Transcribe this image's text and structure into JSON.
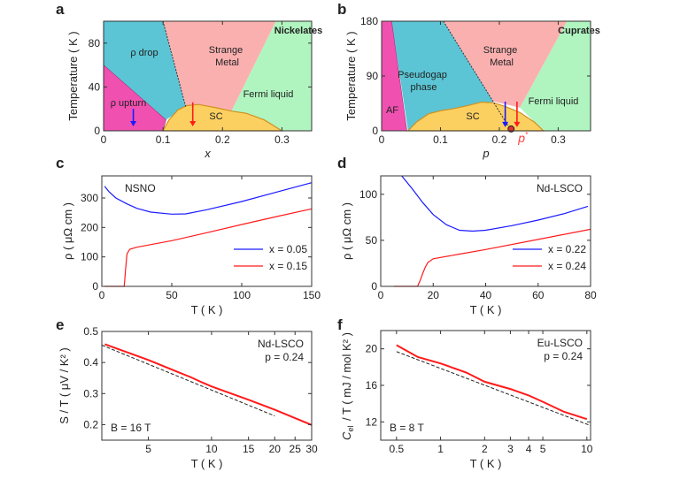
{
  "colors": {
    "pink": "#f050b0",
    "cyan": "#5bc5d5",
    "salmon": "#fbb0b0",
    "green": "#b0f5c0",
    "sc": "#fcd060",
    "sc_edge": "#d09020",
    "blue": "#1a1aff",
    "red": "#ff1a1a"
  },
  "chart_data": [
    {
      "panel": "a",
      "type": "area",
      "xlabel": "x",
      "ylabel": "Temperature ( K )",
      "xlim": [
        0,
        0.35
      ],
      "ylim": [
        0,
        100
      ],
      "xticks": [
        0,
        0.1,
        0.2,
        0.3
      ],
      "yticks": [
        0,
        40,
        80
      ],
      "title": "Nickelates",
      "regions": [
        {
          "label": "ρ drop",
          "color": "cyan",
          "points": [
            [
              0,
              100
            ],
            [
              0.1,
              100
            ],
            [
              0.138,
              22
            ],
            [
              0.105,
              10
            ],
            [
              0,
              60
            ]
          ]
        },
        {
          "label": "Strange Metal",
          "color": "salmon",
          "points": [
            [
              0.1,
              100
            ],
            [
              0.29,
              100
            ],
            [
              0.215,
              18
            ],
            [
              0.138,
              22
            ]
          ]
        },
        {
          "label": "Fermi liquid",
          "color": "green",
          "points": [
            [
              0.29,
              100
            ],
            [
              0.35,
              100
            ],
            [
              0.35,
              0
            ],
            [
              0.3,
              0
            ],
            [
              0.215,
              18
            ]
          ]
        },
        {
          "label": "ρ upturn",
          "color": "pink",
          "points": [
            [
              0,
              60
            ],
            [
              0.105,
              10
            ],
            [
              0.1,
              0
            ],
            [
              0,
              0
            ]
          ]
        },
        {
          "label": "SC",
          "color": "sc",
          "points": [
            [
              0.1,
              0
            ],
            [
              0.11,
              10
            ],
            [
              0.125,
              19
            ],
            [
              0.14,
              23
            ],
            [
              0.16,
              24
            ],
            [
              0.19,
              21
            ],
            [
              0.215,
              18
            ],
            [
              0.24,
              16
            ],
            [
              0.27,
              10
            ],
            [
              0.3,
              0
            ]
          ]
        }
      ],
      "dashed": [
        [
          0.1,
          100
        ],
        [
          0.138,
          22
        ]
      ],
      "arrows": [
        {
          "x": 0.05,
          "from": 20,
          "to": 4,
          "color": "blue"
        },
        {
          "x": 0.15,
          "from": 26,
          "to": 4,
          "color": "red"
        }
      ]
    },
    {
      "panel": "b",
      "type": "area",
      "xlabel": "p",
      "ylabel": "Temperature ( K )",
      "xlim": [
        0,
        0.355
      ],
      "ylim": [
        0,
        180
      ],
      "xticks": [
        0,
        0.1,
        0.2,
        0.3
      ],
      "yticks": [
        0,
        90,
        180
      ],
      "title": "Cuprates",
      "regions": [
        {
          "label": "Pseudogap phase",
          "color": "cyan",
          "points": [
            [
              0.017,
              180
            ],
            [
              0.105,
              180
            ],
            [
              0.19,
              48
            ],
            [
              0.045,
              0
            ]
          ]
        },
        {
          "label": "Strange Metal",
          "color": "salmon",
          "points": [
            [
              0.105,
              180
            ],
            [
              0.315,
              180
            ],
            [
              0.235,
              38
            ],
            [
              0.19,
              48
            ]
          ]
        },
        {
          "label": "Fermi liquid",
          "color": "green",
          "points": [
            [
              0.315,
              180
            ],
            [
              0.355,
              180
            ],
            [
              0.355,
              0
            ],
            [
              0.275,
              0
            ],
            [
              0.235,
              38
            ]
          ]
        },
        {
          "label": "AF",
          "color": "pink",
          "points": [
            [
              0,
              180
            ],
            [
              0.017,
              180
            ],
            [
              0.043,
              0
            ],
            [
              0,
              0
            ]
          ]
        },
        {
          "label": "SC",
          "color": "sc",
          "points": [
            [
              0.045,
              0
            ],
            [
              0.06,
              15
            ],
            [
              0.08,
              28
            ],
            [
              0.1,
              33
            ],
            [
              0.12,
              36
            ],
            [
              0.14,
              40
            ],
            [
              0.17,
              47
            ],
            [
              0.19,
              46
            ],
            [
              0.21,
              40
            ],
            [
              0.235,
              30
            ],
            [
              0.26,
              14
            ],
            [
              0.275,
              0
            ]
          ]
        }
      ],
      "dashed": [
        [
          0.105,
          180
        ],
        [
          0.22,
          0
        ]
      ],
      "point": {
        "x": 0.22,
        "y": 3,
        "label": "p*"
      },
      "arrows": [
        {
          "x": 0.21,
          "from": 48,
          "to": 6,
          "color": "blue"
        },
        {
          "x": 0.23,
          "from": 48,
          "to": 6,
          "color": "red"
        }
      ]
    },
    {
      "panel": "c",
      "type": "line",
      "xlabel": "T ( K )",
      "ylabel": "ρ ( μΩ cm )",
      "xlim": [
        0,
        150
      ],
      "ylim": [
        0,
        375
      ],
      "xticks": [
        0,
        50,
        100,
        150
      ],
      "yticks": [
        0,
        100,
        200,
        300
      ],
      "annotation": "NSNO",
      "legend": "bottom-right",
      "series": [
        {
          "name": "x = 0.05",
          "color": "blue",
          "points": [
            [
              2,
              340
            ],
            [
              5,
              322
            ],
            [
              10,
              300
            ],
            [
              18,
              280
            ],
            [
              25,
              265
            ],
            [
              35,
              252
            ],
            [
              50,
              245
            ],
            [
              60,
              246
            ],
            [
              75,
              260
            ],
            [
              100,
              288
            ],
            [
              125,
              320
            ],
            [
              150,
              352
            ]
          ]
        },
        {
          "name": "x = 0.15",
          "color": "red",
          "points": [
            [
              2,
              0
            ],
            [
              16,
              0
            ],
            [
              17,
              60
            ],
            [
              18,
              110
            ],
            [
              20,
              126
            ],
            [
              25,
              133
            ],
            [
              50,
              155
            ],
            [
              75,
              182
            ],
            [
              100,
              210
            ],
            [
              125,
              237
            ],
            [
              150,
              263
            ]
          ]
        }
      ]
    },
    {
      "panel": "d",
      "type": "line",
      "xlabel": "T ( K )",
      "ylabel": "ρ ( μΩ cm )",
      "xlim": [
        0,
        80
      ],
      "ylim": [
        0,
        120
      ],
      "xticks": [
        0,
        20,
        40,
        60,
        80
      ],
      "yticks": [
        0,
        50,
        100
      ],
      "annotation": "Nd-LSCO",
      "legend": "bottom-right",
      "series": [
        {
          "name": "x = 0.22",
          "color": "blue",
          "points": [
            [
              8,
              120
            ],
            [
              12,
              106
            ],
            [
              16,
              91
            ],
            [
              20,
              78
            ],
            [
              25,
              67
            ],
            [
              30,
              61
            ],
            [
              35,
              60
            ],
            [
              40,
              61
            ],
            [
              50,
              66
            ],
            [
              60,
              72
            ],
            [
              70,
              79
            ],
            [
              79,
              87
            ]
          ]
        },
        {
          "name": "x = 0.24",
          "color": "red",
          "points": [
            [
              5,
              0
            ],
            [
              14,
              0
            ],
            [
              15,
              6
            ],
            [
              16,
              14
            ],
            [
              17,
              21
            ],
            [
              18,
              26
            ],
            [
              20,
              30
            ],
            [
              30,
              35
            ],
            [
              40,
              40
            ],
            [
              60,
              51
            ],
            [
              80,
              62
            ]
          ]
        }
      ]
    },
    {
      "panel": "e",
      "type": "line",
      "xscale": "log",
      "xlabel": "T ( K )",
      "ylabel": "S / T ( μV / K² )",
      "xlim": [
        3,
        30
      ],
      "ylim": [
        0.15,
        0.5
      ],
      "xticks": [
        5,
        10,
        15,
        20,
        25,
        30
      ],
      "yticks": [
        0.2,
        0.3,
        0.4,
        0.5
      ],
      "annotation": "Nd-LSCO",
      "annotation2": "p = 0.24",
      "field": "B = 16 T",
      "series": [
        {
          "color": "red",
          "points": [
            [
              3.1,
              0.459
            ],
            [
              4,
              0.432
            ],
            [
              5,
              0.408
            ],
            [
              7,
              0.368
            ],
            [
              8,
              0.352
            ],
            [
              9,
              0.336
            ],
            [
              10,
              0.323
            ],
            [
              15,
              0.28
            ],
            [
              20,
              0.248
            ],
            [
              30,
              0.199
            ]
          ]
        },
        {
          "color": "dashed",
          "points": [
            [
              3,
              0.456
            ],
            [
              20,
              0.228
            ]
          ]
        }
      ]
    },
    {
      "panel": "f",
      "type": "line",
      "xscale": "log",
      "xlabel": "T ( K )",
      "ylabel": "C / T ( mJ / mol K² )",
      "ylabel_sub": "el",
      "xlim": [
        0.39,
        10.6
      ],
      "ylim": [
        10,
        22
      ],
      "xticks": [
        0.5,
        1,
        2,
        3,
        4,
        5,
        10
      ],
      "yticks": [
        12,
        16,
        20
      ],
      "annotation": "Eu-LSCO",
      "annotation2": "p = 0.24",
      "field": "B = 8 T",
      "series": [
        {
          "color": "red",
          "points": [
            [
              0.5,
              20.4
            ],
            [
              0.7,
              19.1
            ],
            [
              1,
              18.4
            ],
            [
              1.5,
              17.4
            ],
            [
              2,
              16.4
            ],
            [
              3,
              15.6
            ],
            [
              4,
              14.9
            ],
            [
              5,
              14.2
            ],
            [
              7,
              13.1
            ],
            [
              10,
              12.3
            ]
          ]
        },
        {
          "color": "dashed",
          "points": [
            [
              0.5,
              19.7
            ],
            [
              10.6,
              11.6
            ]
          ]
        }
      ]
    }
  ]
}
